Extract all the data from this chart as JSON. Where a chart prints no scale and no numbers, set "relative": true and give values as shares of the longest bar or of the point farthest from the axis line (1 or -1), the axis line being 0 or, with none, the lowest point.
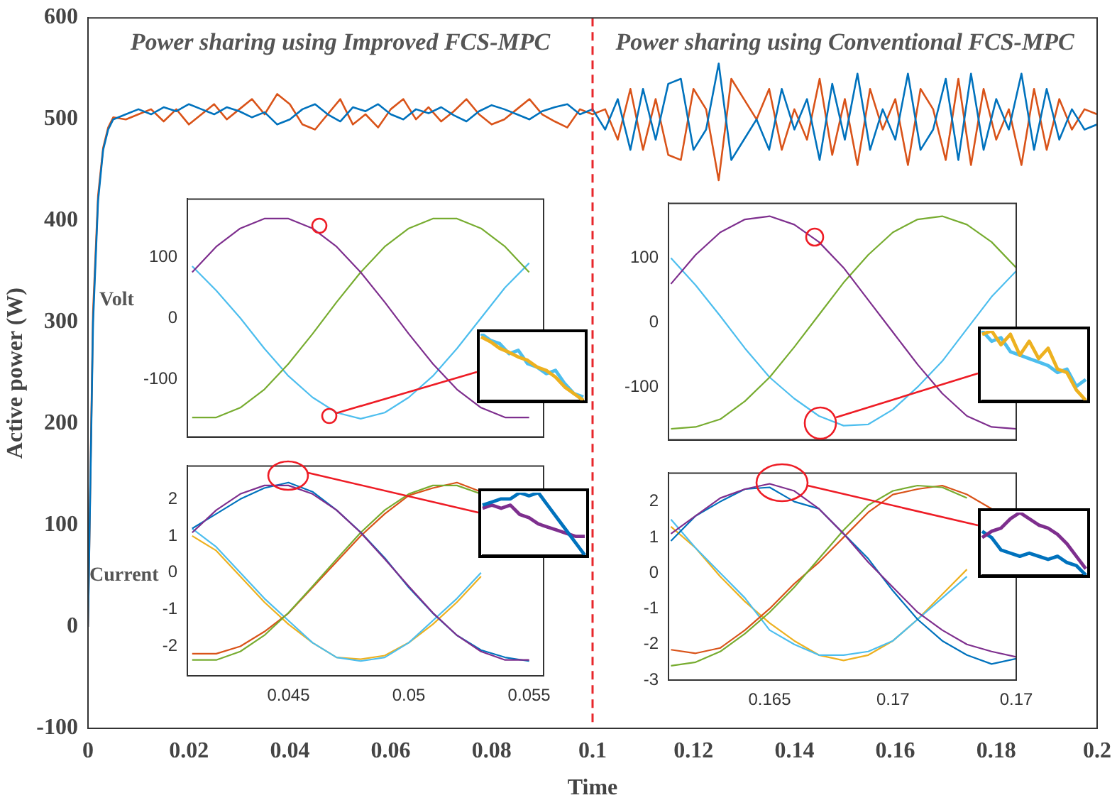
{
  "chart_data": [
    {
      "type": "line",
      "xlabel": "Time",
      "ylabel": "Active power (W)",
      "xlim": [
        0,
        0.2
      ],
      "ylim": [
        -100,
        600
      ],
      "xticks": [
        0,
        0.02,
        0.04,
        0.06,
        0.08,
        0.1,
        0.12,
        0.14,
        0.16,
        0.18,
        0.2
      ],
      "yticks": [
        -100,
        0,
        100,
        200,
        300,
        400,
        500,
        600
      ],
      "grid": false,
      "legend": false,
      "annotations": [
        "Power sharing using Improved FCS-MPC",
        "Power sharing using Conventional FCS-MPC"
      ],
      "ref_lines": [
        {
          "axis": "x",
          "value": 0.1,
          "color": "#e8262b",
          "line_style": "dashed"
        }
      ],
      "x": [
        0,
        0.001,
        0.002,
        0.003,
        0.004,
        0.005,
        0.0075,
        0.01,
        0.0125,
        0.015,
        0.0175,
        0.02,
        0.0225,
        0.025,
        0.0275,
        0.03,
        0.0325,
        0.035,
        0.0375,
        0.04,
        0.0425,
        0.045,
        0.0475,
        0.05,
        0.0525,
        0.055,
        0.0575,
        0.06,
        0.0625,
        0.065,
        0.0675,
        0.07,
        0.0725,
        0.075,
        0.0775,
        0.08,
        0.0825,
        0.085,
        0.0875,
        0.09,
        0.0925,
        0.095,
        0.0975,
        0.1,
        0.1025,
        0.105,
        0.1075,
        0.11,
        0.1125,
        0.115,
        0.1175,
        0.12,
        0.1225,
        0.125,
        0.1275,
        0.13,
        0.1325,
        0.135,
        0.1375,
        0.14,
        0.1425,
        0.145,
        0.1475,
        0.15,
        0.1525,
        0.155,
        0.1575,
        0.16,
        0.1625,
        0.165,
        0.1675,
        0.17,
        0.1725,
        0.175,
        0.1775,
        0.18,
        0.1825,
        0.185,
        0.1875,
        0.19,
        0.1925,
        0.195,
        0.1975,
        0.2
      ],
      "series": [
        {
          "color": "#0072bd",
          "values": [
            0,
            300,
            420,
            470,
            490,
            500,
            505,
            510,
            505,
            512,
            508,
            515,
            510,
            505,
            512,
            508,
            502,
            507,
            495,
            500,
            510,
            515,
            505,
            498,
            512,
            508,
            515,
            505,
            500,
            510,
            506,
            512,
            504,
            498,
            508,
            514,
            510,
            505,
            500,
            508,
            512,
            515,
            505,
            510,
            490,
            520,
            470,
            530,
            480,
            535,
            540,
            470,
            490,
            555,
            460,
            480,
            500,
            470,
            530,
            490,
            520,
            460,
            535,
            480,
            545,
            470,
            510,
            480,
            545,
            470,
            490,
            540,
            460,
            545,
            470,
            520,
            490,
            545,
            470,
            530,
            480,
            510,
            490,
            495
          ]
        },
        {
          "color": "#d95319",
          "values": [
            0,
            310,
            425,
            472,
            492,
            502,
            500,
            505,
            510,
            498,
            510,
            495,
            505,
            515,
            500,
            510,
            520,
            505,
            525,
            515,
            495,
            490,
            505,
            520,
            495,
            505,
            492,
            510,
            520,
            500,
            512,
            498,
            508,
            520,
            505,
            495,
            500,
            510,
            520,
            505,
            498,
            492,
            510,
            505,
            510,
            480,
            530,
            470,
            520,
            465,
            460,
            530,
            510,
            440,
            540,
            520,
            500,
            530,
            470,
            510,
            480,
            540,
            465,
            520,
            455,
            530,
            490,
            520,
            455,
            530,
            510,
            460,
            540,
            455,
            530,
            480,
            510,
            455,
            530,
            470,
            520,
            490,
            510,
            505
          ]
        }
      ]
    },
    {
      "type": "line",
      "ylabel": "Volt",
      "xlim": [
        0.0408,
        0.0556
      ],
      "ylim": [
        -195,
        195
      ],
      "xticks": [
        0.045,
        0.05,
        0.055
      ],
      "yticks": [
        -100,
        0,
        100
      ],
      "tick_labels": "y",
      "grid": false,
      "legend": false,
      "x": [
        0.041,
        0.042,
        0.043,
        0.044,
        0.045,
        0.046,
        0.047,
        0.048,
        0.049,
        0.05,
        0.051,
        0.052,
        0.053,
        0.054,
        0.055
      ],
      "series": [
        {
          "color": "#7e2f8e",
          "values": [
            75,
            117,
            147,
            163,
            163,
            147,
            117,
            75,
            26,
            -26,
            -75,
            -117,
            -147,
            -163,
            -163
          ]
        },
        {
          "color": "#77ac30",
          "values": [
            -163,
            -163,
            -147,
            -117,
            -75,
            -26,
            26,
            75,
            117,
            147,
            163,
            163,
            147,
            117,
            75
          ]
        },
        {
          "color": "#4dbeee",
          "values": [
            85,
            45,
            0,
            -50,
            -95,
            -130,
            -155,
            -165,
            -155,
            -130,
            -95,
            -50,
            0,
            50,
            90
          ]
        }
      ]
    },
    {
      "type": "line",
      "ylabel": "Current",
      "xlim": [
        0.0408,
        0.0556
      ],
      "ylim": [
        -2.8,
        2.9
      ],
      "xticks": [
        0.045,
        0.05,
        0.055
      ],
      "yticks": [
        -2,
        -1,
        0,
        1,
        2
      ],
      "grid": false,
      "legend": false,
      "x": [
        0.041,
        0.042,
        0.043,
        0.044,
        0.045,
        0.046,
        0.047,
        0.048,
        0.049,
        0.05,
        0.051,
        0.052,
        0.053,
        0.054,
        0.055
      ],
      "series": [
        {
          "color": "#7e2f8e",
          "values": [
            1.09,
            1.7,
            2.14,
            2.37,
            2.37,
            2.14,
            1.7,
            1.09,
            0.37,
            -0.37,
            -1.09,
            -1.7,
            -2.14,
            -2.37,
            -2.37
          ]
        },
        {
          "color": "#0072bd",
          "values": [
            1.2,
            1.6,
            2.0,
            2.3,
            2.45,
            2.2,
            1.7,
            1.1,
            0.4,
            -0.4,
            -1.1,
            -1.7,
            -2.1,
            -2.3,
            -2.4
          ]
        },
        {
          "color": "#77ac30",
          "values": [
            -2.37,
            -2.37,
            -2.14,
            -1.7,
            -1.09,
            -0.37,
            0.37,
            1.09,
            1.7,
            2.14,
            2.37,
            2.37,
            2.14,
            null,
            null
          ]
        },
        {
          "color": "#d95319",
          "values": [
            -2.2,
            -2.2,
            -2.0,
            -1.6,
            -1.1,
            -0.4,
            0.3,
            1.0,
            1.6,
            2.1,
            2.3,
            2.45,
            2.2,
            null,
            null
          ]
        },
        {
          "color": "#4dbeee",
          "values": [
            1.2,
            0.7,
            0.0,
            -0.7,
            -1.3,
            -1.9,
            -2.3,
            -2.4,
            -2.3,
            -1.9,
            -1.3,
            -0.7,
            0.0,
            null,
            null
          ]
        },
        {
          "color": "#edb120",
          "values": [
            1.0,
            0.6,
            -0.1,
            -0.8,
            -1.4,
            -1.9,
            -2.3,
            -2.35,
            -2.25,
            -1.9,
            -1.4,
            -0.8,
            -0.1,
            null,
            null
          ]
        }
      ]
    },
    {
      "type": "line",
      "xlim": [
        0.1609,
        0.175
      ],
      "ylim": [
        -182,
        185
      ],
      "xticks": [
        0.165,
        0.17,
        0.175
      ],
      "yticks": [
        -100,
        0,
        100
      ],
      "tick_labels": "y",
      "grid": false,
      "legend": false,
      "x": [
        0.161,
        0.162,
        0.163,
        0.164,
        0.165,
        0.166,
        0.167,
        0.168,
        0.169,
        0.17,
        0.171,
        0.172,
        0.173,
        0.174,
        0.175
      ],
      "series": [
        {
          "color": "#7e2f8e",
          "values": [
            60,
            105,
            140,
            160,
            165,
            152,
            125,
            85,
            35,
            -15,
            -65,
            -110,
            -145,
            -162,
            -165
          ]
        },
        {
          "color": "#77ac30",
          "values": [
            -165,
            -162,
            -150,
            -122,
            -85,
            -38,
            12,
            62,
            105,
            140,
            160,
            165,
            152,
            125,
            85
          ]
        },
        {
          "color": "#4dbeee",
          "values": [
            100,
            58,
            10,
            -40,
            -85,
            -118,
            -145,
            -160,
            -158,
            -135,
            -100,
            -60,
            -10,
            40,
            80
          ]
        }
      ]
    },
    {
      "type": "line",
      "xlim": [
        0.1609,
        0.175
      ],
      "ylim": [
        -3,
        2.8
      ],
      "xticks": [
        0.165,
        0.17,
        {
          "value": 0.175,
          "label": "0.17"
        }
      ],
      "yticks": [
        -3,
        -2,
        -1,
        0,
        1,
        2
      ],
      "grid": false,
      "legend": false,
      "x": [
        0.161,
        0.162,
        0.163,
        0.164,
        0.165,
        0.166,
        0.167,
        0.168,
        0.169,
        0.17,
        0.171,
        0.172,
        0.173,
        0.174,
        0.175
      ],
      "series": [
        {
          "color": "#7e2f8e",
          "values": [
            1.1,
            1.6,
            2.1,
            2.35,
            2.5,
            2.3,
            1.8,
            1.1,
            0.3,
            -0.4,
            -1.1,
            -1.6,
            -2.0,
            -2.2,
            -2.35
          ]
        },
        {
          "color": "#0072bd",
          "values": [
            0.9,
            1.6,
            2.0,
            2.35,
            2.4,
            2.0,
            1.8,
            1.1,
            0.4,
            -0.5,
            -1.3,
            -1.9,
            -2.3,
            -2.55,
            -2.4
          ]
        },
        {
          "color": "#77ac30",
          "values": [
            -2.6,
            -2.5,
            -2.2,
            -1.7,
            -1.1,
            -0.4,
            0.4,
            1.2,
            1.9,
            2.3,
            2.45,
            2.4,
            2.1,
            null,
            null
          ]
        },
        {
          "color": "#d95319",
          "values": [
            -2.15,
            -2.25,
            -2.1,
            -1.6,
            -1.0,
            -0.3,
            0.3,
            1.0,
            1.7,
            2.2,
            2.35,
            2.45,
            2.2,
            1.8,
            null
          ]
        },
        {
          "color": "#4dbeee",
          "values": [
            1.5,
            0.7,
            0.0,
            -0.7,
            -1.6,
            -2.0,
            -2.3,
            -2.3,
            -2.2,
            -1.9,
            -1.3,
            -0.7,
            -0.1,
            null,
            null
          ]
        },
        {
          "color": "#edb120",
          "values": [
            1.3,
            0.7,
            -0.1,
            -0.8,
            -1.4,
            -1.9,
            -2.3,
            -2.45,
            -2.3,
            -1.9,
            -1.3,
            -0.6,
            0.1,
            null,
            null
          ]
        }
      ]
    },
    {
      "type": "line",
      "relative": true,
      "tick_labels": false,
      "legend": false,
      "categories": [
        null,
        null,
        null,
        null,
        null,
        null,
        null,
        null,
        null,
        null,
        null,
        null
      ],
      "series": [
        {
          "color": "#edb120",
          "values": [
            0.95,
            0.88,
            0.78,
            0.72,
            0.65,
            0.6,
            0.5,
            0.45,
            0.35,
            0.2,
            0.1,
            0
          ]
        },
        {
          "color": "#4dbeee",
          "values": [
            1,
            0.9,
            0.85,
            0.7,
            0.75,
            0.55,
            0.5,
            0.4,
            0.45,
            0.25,
            0.1,
            0.05
          ]
        }
      ]
    },
    {
      "type": "line",
      "relative": true,
      "tick_labels": false,
      "legend": false,
      "categories": [
        null,
        null,
        null,
        null,
        null,
        null,
        null,
        null,
        null,
        null,
        null,
        null
      ],
      "series": [
        {
          "color": "#0072bd",
          "values": [
            0.8,
            0.85,
            0.9,
            0.9,
            1,
            0.95,
            1,
            0.8,
            0.6,
            0.4,
            0.2,
            0
          ]
        },
        {
          "color": "#7e2f8e",
          "values": [
            0.75,
            0.8,
            0.75,
            0.8,
            0.65,
            0.6,
            0.5,
            0.45,
            0.4,
            0.35,
            0.3,
            0.3
          ]
        }
      ]
    },
    {
      "type": "line",
      "relative": true,
      "tick_labels": false,
      "legend": false,
      "categories": [
        null,
        null,
        null,
        null,
        null,
        null,
        null,
        null,
        null,
        null,
        null,
        null
      ],
      "series": [
        {
          "color": "#edb120",
          "values": [
            0.95,
            1,
            0.8,
            0.95,
            0.65,
            0.85,
            0.6,
            0.75,
            0.45,
            0.4,
            0.15,
            0
          ]
        },
        {
          "color": "#4dbeee",
          "values": [
            1,
            0.85,
            0.9,
            0.7,
            0.65,
            0.6,
            0.55,
            0.5,
            0.4,
            0.45,
            0.2,
            0.3
          ]
        }
      ]
    },
    {
      "type": "line",
      "relative": true,
      "tick_labels": false,
      "legend": false,
      "categories": [
        null,
        null,
        null,
        null,
        null,
        null,
        null,
        null,
        null,
        null,
        null,
        null
      ],
      "series": [
        {
          "color": "#7e2f8e",
          "values": [
            0.6,
            0.7,
            0.75,
            0.9,
            1,
            0.9,
            0.8,
            0.75,
            0.65,
            0.5,
            0.3,
            0.1
          ]
        },
        {
          "color": "#0072bd",
          "values": [
            0.7,
            0.6,
            0.4,
            0.35,
            0.3,
            0.35,
            0.3,
            0.25,
            0.3,
            0.2,
            0.15,
            0
          ]
        }
      ]
    }
  ]
}
